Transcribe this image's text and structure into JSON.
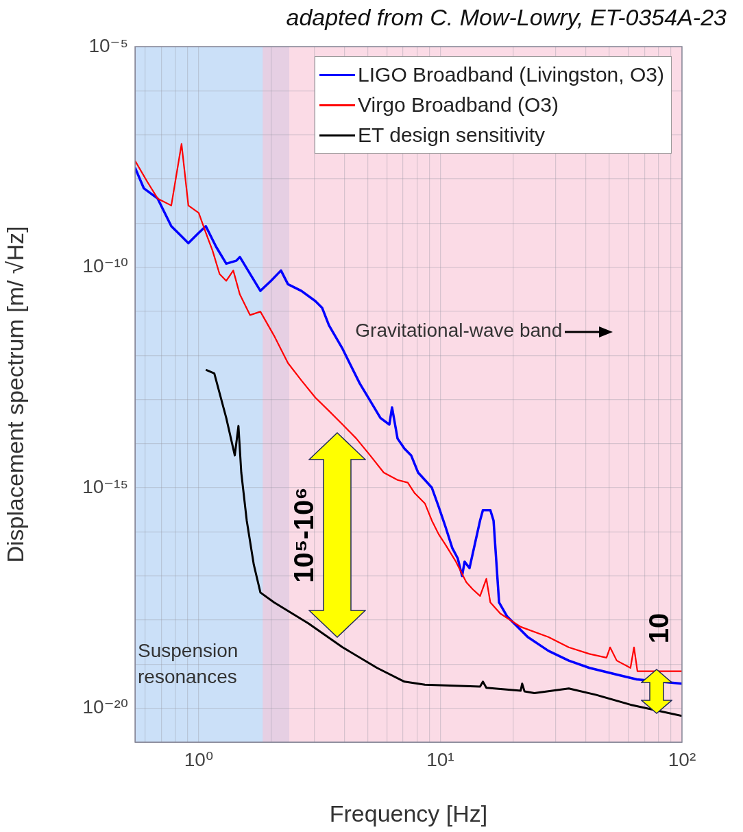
{
  "chart_data": {
    "type": "line",
    "xlabel": "Frequency [Hz]",
    "ylabel": "Displacement spectrum [m/ √Hz]",
    "xlim": [
      0.545,
      100
    ],
    "ylim": [
      1.7e-21,
      1e-05
    ],
    "xticks": [
      {
        "value": 0.6,
        "label": null
      },
      {
        "value": 0.7,
        "label": null
      },
      {
        "value": 0.8,
        "label": null
      },
      {
        "value": 0.9,
        "label": null
      },
      {
        "value": 1,
        "label": "10⁰"
      },
      {
        "value": 2,
        "label": null
      },
      {
        "value": 3,
        "label": null
      },
      {
        "value": 4,
        "label": null
      },
      {
        "value": 5,
        "label": null
      },
      {
        "value": 6,
        "label": null
      },
      {
        "value": 7,
        "label": null
      },
      {
        "value": 8,
        "label": null
      },
      {
        "value": 9,
        "label": null
      },
      {
        "value": 10,
        "label": "10¹"
      },
      {
        "value": 20,
        "label": null
      },
      {
        "value": 30,
        "label": null
      },
      {
        "value": 40,
        "label": null
      },
      {
        "value": 50,
        "label": null
      },
      {
        "value": 60,
        "label": null
      },
      {
        "value": 70,
        "label": null
      },
      {
        "value": 80,
        "label": null
      },
      {
        "value": 90,
        "label": null
      },
      {
        "value": 100,
        "label": "10²"
      }
    ],
    "yticks": [
      {
        "value": 1e-20,
        "label": "10⁻²⁰"
      },
      {
        "value": 1e-19,
        "label": null
      },
      {
        "value": 1e-18,
        "label": null
      },
      {
        "value": 1e-17,
        "label": null
      },
      {
        "value": 1e-16,
        "label": null
      },
      {
        "value": 1e-15,
        "label": "10⁻¹⁵"
      },
      {
        "value": 1e-14,
        "label": null
      },
      {
        "value": 1e-13,
        "label": null
      },
      {
        "value": 1e-12,
        "label": null
      },
      {
        "value": 1e-11,
        "label": null
      },
      {
        "value": 1e-10,
        "label": "10⁻¹⁰"
      },
      {
        "value": 1e-09,
        "label": null
      },
      {
        "value": 1e-08,
        "label": null
      },
      {
        "value": 1e-07,
        "label": null
      },
      {
        "value": 1e-06,
        "label": null
      },
      {
        "value": 1e-05,
        "label": "10⁻⁵"
      }
    ],
    "log": "xy",
    "grid": true,
    "legend": "top right",
    "marker": "none",
    "series": [
      {
        "name": "LIGO Broadband (Livingston, O3)",
        "color": "#0000ff",
        "x": [
          0.545,
          0.593,
          0.676,
          0.77,
          0.849,
          0.906,
          1,
          1.07,
          1.18,
          1.3,
          1.43,
          1.48,
          1.6,
          1.8,
          1.99,
          2.19,
          2.34,
          2.66,
          3.04,
          3.24,
          3.46,
          3.94,
          4.21,
          4.64,
          5.12,
          5.65,
          6.15,
          6.31,
          6.65,
          7.1,
          7.57,
          8.09,
          8.63,
          9.22,
          9.84,
          10.5,
          11.2,
          11.8,
          12.3,
          12.6,
          13.2,
          14.6,
          15.0,
          16.1,
          16.6,
          17.5,
          18.9,
          23.0,
          28.0,
          34.0,
          41.4,
          53.7,
          65.0,
          100
        ],
        "values": [
          1.8e-08,
          6.1e-09,
          3.6e-09,
          8.5e-10,
          5e-10,
          3.5e-10,
          6e-10,
          8.5e-10,
          2.9e-10,
          1.2e-10,
          1.4e-10,
          1.7e-10,
          8.4e-11,
          2.9e-11,
          4.9e-11,
          8.4e-11,
          4.1e-11,
          2.9e-11,
          1.7e-11,
          1.2e-11,
          4.8e-12,
          1.4e-12,
          6.7e-13,
          2.3e-13,
          9.4e-14,
          3.8e-14,
          2.7e-14,
          6.6e-14,
          1.3e-14,
          7.7e-15,
          5.4e-15,
          2.2e-15,
          1.5e-15,
          1e-15,
          3.7e-16,
          1.3e-16,
          4.3e-17,
          2.5e-17,
          1e-17,
          2.1e-17,
          1.5e-17,
          1.8e-16,
          3.1e-16,
          3.1e-16,
          1.8e-16,
          2.5e-18,
          1.2e-18,
          4.1e-19,
          2e-19,
          1.2e-19,
          8.2e-20,
          5.8e-20,
          4.5e-20,
          3.6e-20
        ]
      },
      {
        "name": "Virgo Broadband (O3)",
        "color": "#ff0000",
        "x": [
          0.545,
          0.612,
          0.676,
          0.77,
          0.849,
          0.906,
          1,
          1.07,
          1.14,
          1.22,
          1.3,
          1.39,
          1.48,
          1.63,
          1.8,
          2.05,
          2.34,
          2.66,
          3.04,
          3.46,
          3.94,
          4.49,
          5.12,
          5.83,
          6.65,
          7.33,
          7.83,
          8.63,
          9.22,
          9.84,
          10.5,
          11.6,
          12.8,
          13.6,
          14.6,
          15.5,
          16.1,
          17.7,
          21.5,
          28.0,
          34.0,
          41.4,
          48.7,
          50.4,
          53.7,
          61.2,
          63.3,
          65.4,
          100
        ],
        "values": [
          2.6e-08,
          8.7e-09,
          3.6e-09,
          2.5e-09,
          6.2e-08,
          2.5e-09,
          1.7e-09,
          6e-10,
          2.4e-10,
          7e-11,
          4.9e-11,
          8.4e-11,
          2.4e-11,
          8.2e-12,
          9.8e-12,
          2.8e-12,
          6.7e-13,
          2.7e-13,
          1.1e-13,
          5.5e-14,
          2.7e-14,
          1.3e-14,
          5.4e-15,
          2.2e-15,
          1.5e-15,
          1.3e-15,
          7.5e-16,
          4.4e-16,
          1.8e-16,
          8.8e-17,
          5.1e-17,
          2.1e-17,
          7.2e-18,
          5e-18,
          3.5e-18,
          8.6e-18,
          2.5e-18,
          1.4e-18,
          7e-19,
          4.1e-19,
          2.4e-19,
          1.7e-19,
          1.4e-19,
          2.4e-19,
          1.2e-19,
          8.2e-20,
          2.4e-19,
          6.9e-20,
          6.9e-20
        ]
      },
      {
        "name": "ET design sensitivity",
        "color": "#000000",
        "x": [
          1.07,
          1.16,
          1.3,
          1.41,
          1.46,
          1.5,
          1.58,
          1.69,
          1.8,
          2.05,
          2.84,
          3.94,
          5.47,
          7.1,
          8.63,
          14.6,
          15.0,
          15.5,
          21.5,
          21.8,
          22.3,
          24.5,
          34.0,
          44.2,
          61.2,
          100
        ],
        "values": [
          4.7e-13,
          3.9e-13,
          3.8e-14,
          5.4e-15,
          2.5e-14,
          2.2e-15,
          1.8e-16,
          1.8e-17,
          4.2e-18,
          2.5e-18,
          8.4e-19,
          2.4e-19,
          8.2e-20,
          4e-20,
          3.4e-20,
          3.1e-20,
          4e-20,
          2.9e-20,
          2.5e-20,
          3.6e-20,
          2.4e-20,
          2.2e-20,
          2.8e-20,
          2e-20,
          1.2e-20,
          6.7e-21
        ]
      }
    ],
    "bands": [
      {
        "axis": "x",
        "from": 0.545,
        "to": 2.37,
        "label": "Suspension resonances",
        "color": "#a9cbf3"
      },
      {
        "axis": "x",
        "from": 1.84,
        "to": 100,
        "label": "Gravitational-wave band",
        "color": "#f9c3d5"
      }
    ],
    "annotations": [
      "adapted from C. Mow-Lowry, ET-0354A-23",
      "10⁵-10⁶",
      "10"
    ]
  }
}
